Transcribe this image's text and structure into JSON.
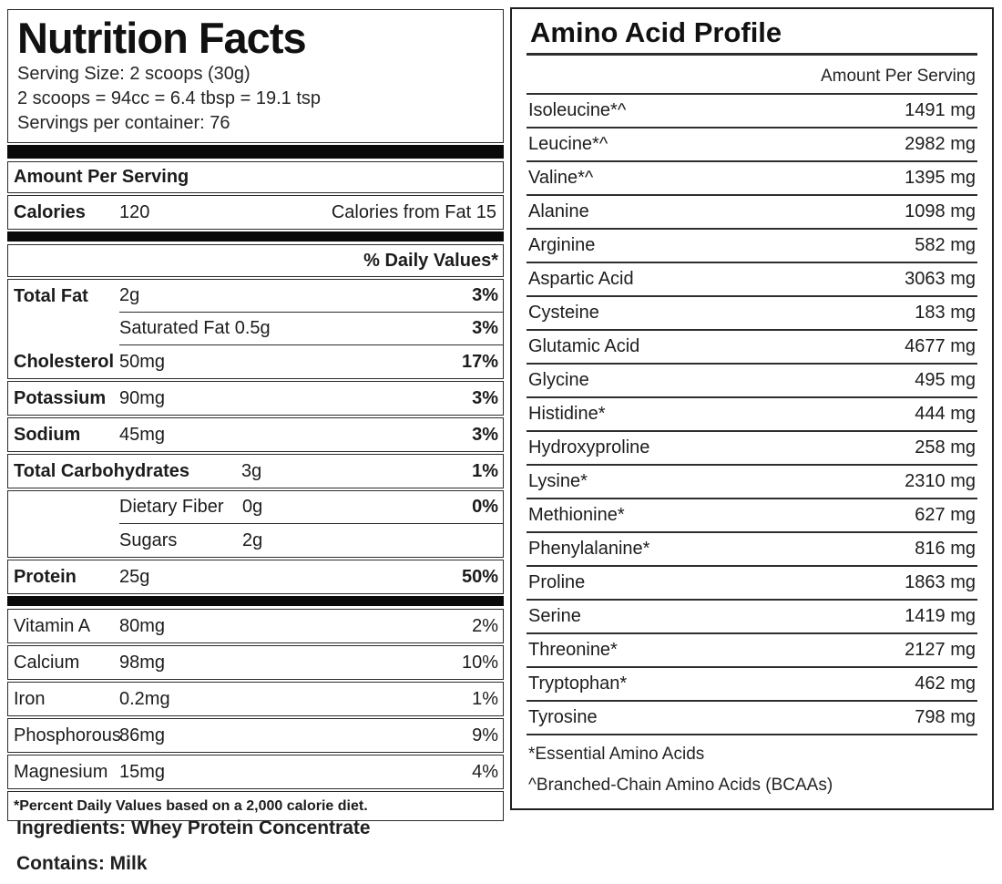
{
  "nutrition": {
    "title": "Nutrition Facts",
    "serving_lines": [
      "Serving Size: 2 scoops (30g)",
      "2 scoops = 94cc = 6.4 tbsp = 19.1 tsp",
      "Servings per container: 76"
    ],
    "amount_per_serving_label": "Amount Per Serving",
    "calories": {
      "label": "Calories",
      "value": "120",
      "from_fat": "Calories from Fat 15"
    },
    "daily_values_header": "% Daily Values*",
    "rows": {
      "total_fat": {
        "label": "Total Fat",
        "value": "2g",
        "pct": "3%"
      },
      "saturated_fat": {
        "label": "Saturated Fat 0.5g",
        "pct": "3%"
      },
      "cholesterol": {
        "label": "Cholesterol",
        "value": "50mg",
        "pct": "17%"
      },
      "potassium": {
        "label": "Potassium",
        "value": "90mg",
        "pct": "3%"
      },
      "sodium": {
        "label": "Sodium",
        "value": "45mg",
        "pct": "3%"
      },
      "total_carbohydrates": {
        "label": "Total Carbohydrates",
        "value": "3g",
        "pct": "1%"
      },
      "dietary_fiber": {
        "label": "Dietary Fiber",
        "value": "0g",
        "pct": "0%"
      },
      "sugars": {
        "label": "Sugars",
        "value": "2g"
      },
      "protein": {
        "label": "Protein",
        "value": "25g",
        "pct": "50%"
      },
      "vitamin_a": {
        "label": "Vitamin A",
        "value": "80mg",
        "pct": "2%"
      },
      "calcium": {
        "label": "Calcium",
        "value": "98mg",
        "pct": "10%"
      },
      "iron": {
        "label": "Iron",
        "value": "0.2mg",
        "pct": "1%"
      },
      "phosphorous": {
        "label": "Phosphorous",
        "value": "86mg",
        "pct": "9%"
      },
      "magnesium": {
        "label": "Magnesium",
        "value": "15mg",
        "pct": "4%"
      }
    },
    "footnote": "*Percent Daily Values based on a 2,000 calorie diet."
  },
  "amino": {
    "title": "Amino Acid Profile",
    "column_header": "Amount Per Serving",
    "rows": [
      {
        "name": "Isoleucine*^",
        "amount": "1491 mg"
      },
      {
        "name": "Leucine*^",
        "amount": "2982 mg"
      },
      {
        "name": "Valine*^",
        "amount": "1395 mg"
      },
      {
        "name": "Alanine",
        "amount": "1098 mg"
      },
      {
        "name": "Arginine",
        "amount": "582 mg"
      },
      {
        "name": "Aspartic Acid",
        "amount": "3063 mg"
      },
      {
        "name": "Cysteine",
        "amount": "183 mg"
      },
      {
        "name": "Glutamic Acid",
        "amount": "4677 mg"
      },
      {
        "name": "Glycine",
        "amount": "495 mg"
      },
      {
        "name": "Histidine*",
        "amount": "444 mg"
      },
      {
        "name": "Hydroxyproline",
        "amount": "258 mg"
      },
      {
        "name": "Lysine*",
        "amount": "2310 mg"
      },
      {
        "name": "Methionine*",
        "amount": "627 mg"
      },
      {
        "name": "Phenylalanine*",
        "amount": "816 mg"
      },
      {
        "name": "Proline",
        "amount": "1863 mg"
      },
      {
        "name": "Serine",
        "amount": "1419 mg"
      },
      {
        "name": "Threonine*",
        "amount": "2127 mg"
      },
      {
        "name": "Tryptophan*",
        "amount": "462 mg"
      },
      {
        "name": "Tyrosine",
        "amount": "798 mg"
      }
    ],
    "footnotes": [
      "*Essential Amino Acids",
      "^Branched-Chain Amino Acids (BCAAs)"
    ]
  },
  "bottom": {
    "ingredients": "Ingredients: Whey Protein Concentrate",
    "contains": "Contains: Milk"
  }
}
